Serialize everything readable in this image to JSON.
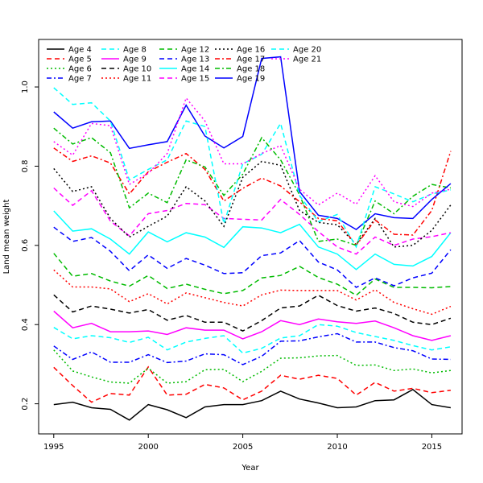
{
  "chart_data": {
    "type": "line",
    "xlabel": "Year",
    "ylabel": "Land mean weight",
    "xlim": [
      1994.2,
      2016.6
    ],
    "ylim": [
      0.124,
      1.12
    ],
    "xticks": [
      1995,
      2000,
      2005,
      2010,
      2015
    ],
    "yticks": [
      0.2,
      0.4,
      0.6,
      0.8,
      1.0
    ],
    "ytick_labels": [
      "0.2",
      "0.4",
      "0.6",
      "0.8",
      "1.0"
    ],
    "grid": false,
    "legend_location": "top-left",
    "x": [
      1995,
      1996,
      1997,
      1998,
      1999,
      2000,
      2001,
      2002,
      2003,
      2004,
      2005,
      2006,
      2007,
      2008,
      2009,
      2010,
      2011,
      2012,
      2013,
      2014,
      2015,
      2016
    ],
    "series": [
      {
        "name": "Age 4",
        "color": "#000000",
        "dash": "solid",
        "values": [
          0.198,
          0.204,
          0.19,
          0.186,
          0.159,
          0.198,
          0.185,
          0.165,
          0.192,
          0.198,
          0.198,
          0.208,
          0.232,
          0.212,
          0.202,
          0.19,
          0.192,
          0.208,
          0.21,
          0.236,
          0.198,
          0.19
        ]
      },
      {
        "name": "Age 5",
        "color": "#ff0000",
        "dash": "dashed",
        "values": [
          0.292,
          0.246,
          0.204,
          0.226,
          0.222,
          0.293,
          0.222,
          0.224,
          0.249,
          0.24,
          0.21,
          0.232,
          0.272,
          0.262,
          0.272,
          0.264,
          0.222,
          0.254,
          0.232,
          0.239,
          0.228,
          0.234
        ]
      },
      {
        "name": "Age 6",
        "color": "#00bb00",
        "dash": "dotted",
        "values": [
          0.336,
          0.283,
          0.268,
          0.255,
          0.252,
          0.29,
          0.252,
          0.256,
          0.286,
          0.287,
          0.256,
          0.282,
          0.315,
          0.316,
          0.321,
          0.322,
          0.297,
          0.298,
          0.284,
          0.288,
          0.278,
          0.284
        ]
      },
      {
        "name": "Age 7",
        "color": "#0000ff",
        "dash": "dashdot",
        "values": [
          0.346,
          0.312,
          0.331,
          0.305,
          0.305,
          0.324,
          0.304,
          0.308,
          0.326,
          0.324,
          0.299,
          0.32,
          0.358,
          0.359,
          0.369,
          0.377,
          0.356,
          0.356,
          0.342,
          0.334,
          0.313,
          0.312
        ]
      },
      {
        "name": "Age 8",
        "color": "#00ffff",
        "dash": "dashed",
        "values": [
          0.393,
          0.364,
          0.372,
          0.367,
          0.355,
          0.368,
          0.336,
          0.356,
          0.365,
          0.372,
          0.328,
          0.34,
          0.366,
          0.372,
          0.4,
          0.396,
          0.38,
          0.37,
          0.36,
          0.347,
          0.336,
          0.344
        ]
      },
      {
        "name": "Age 9",
        "color": "#ff00ff",
        "dash": "solid",
        "values": [
          0.434,
          0.392,
          0.403,
          0.382,
          0.382,
          0.384,
          0.375,
          0.392,
          0.386,
          0.386,
          0.364,
          0.382,
          0.41,
          0.4,
          0.414,
          0.407,
          0.403,
          0.409,
          0.392,
          0.372,
          0.36,
          0.372
        ]
      },
      {
        "name": "Age 10",
        "color": "#000000",
        "dash": "dashed",
        "values": [
          0.475,
          0.432,
          0.447,
          0.439,
          0.429,
          0.438,
          0.411,
          0.423,
          0.406,
          0.406,
          0.384,
          0.41,
          0.442,
          0.447,
          0.474,
          0.448,
          0.434,
          0.442,
          0.428,
          0.406,
          0.4,
          0.416
        ]
      },
      {
        "name": "Age 11",
        "color": "#ff0000",
        "dash": "dotted",
        "values": [
          0.538,
          0.495,
          0.495,
          0.49,
          0.458,
          0.478,
          0.452,
          0.48,
          0.468,
          0.456,
          0.447,
          0.475,
          0.487,
          0.486,
          0.486,
          0.486,
          0.462,
          0.488,
          0.456,
          0.44,
          0.426,
          0.446
        ]
      },
      {
        "name": "Age 12",
        "color": "#00bb00",
        "dash": "dashed",
        "values": [
          0.58,
          0.522,
          0.529,
          0.51,
          0.497,
          0.524,
          0.491,
          0.502,
          0.489,
          0.478,
          0.486,
          0.518,
          0.524,
          0.547,
          0.519,
          0.502,
          0.474,
          0.515,
          0.494,
          0.494,
          0.493,
          0.496
        ]
      },
      {
        "name": "Age 13",
        "color": "#0000ff",
        "dash": "dashed",
        "values": [
          0.646,
          0.61,
          0.62,
          0.585,
          0.536,
          0.576,
          0.542,
          0.567,
          0.55,
          0.529,
          0.531,
          0.574,
          0.581,
          0.612,
          0.558,
          0.538,
          0.494,
          0.518,
          0.498,
          0.518,
          0.53,
          0.589
        ]
      },
      {
        "name": "Age 14",
        "color": "#00ffff",
        "dash": "solid",
        "values": [
          0.687,
          0.636,
          0.642,
          0.616,
          0.578,
          0.634,
          0.609,
          0.632,
          0.621,
          0.595,
          0.647,
          0.644,
          0.632,
          0.653,
          0.596,
          0.578,
          0.539,
          0.578,
          0.552,
          0.548,
          0.572,
          0.632
        ]
      },
      {
        "name": "Age 15",
        "color": "#ff00ff",
        "dash": "dashed",
        "values": [
          0.745,
          0.701,
          0.738,
          0.661,
          0.624,
          0.68,
          0.688,
          0.706,
          0.703,
          0.668,
          0.666,
          0.664,
          0.716,
          0.678,
          0.635,
          0.596,
          0.578,
          0.621,
          0.6,
          0.616,
          0.622,
          0.632
        ]
      },
      {
        "name": "Age 16",
        "color": "#000000",
        "dash": "dotted",
        "values": [
          0.794,
          0.736,
          0.748,
          0.668,
          0.621,
          0.648,
          0.674,
          0.748,
          0.712,
          0.648,
          0.772,
          0.812,
          0.802,
          0.688,
          0.658,
          0.652,
          0.602,
          0.668,
          0.596,
          0.6,
          0.638,
          0.702
        ]
      },
      {
        "name": "Age 17",
        "color": "#ff0000",
        "dash": "dashdot",
        "values": [
          0.846,
          0.812,
          0.826,
          0.808,
          0.73,
          0.786,
          0.81,
          0.832,
          0.792,
          0.712,
          0.744,
          0.77,
          0.75,
          0.71,
          0.668,
          0.662,
          0.6,
          0.664,
          0.628,
          0.626,
          0.688,
          0.838
        ]
      },
      {
        "name": "Age 18",
        "color": "#00bb00",
        "dash": "dashdot",
        "values": [
          0.896,
          0.856,
          0.872,
          0.834,
          0.695,
          0.732,
          0.708,
          0.816,
          0.798,
          0.726,
          0.78,
          0.872,
          0.816,
          0.728,
          0.61,
          0.616,
          0.6,
          0.712,
          0.68,
          0.724,
          0.754,
          0.745
        ]
      },
      {
        "name": "Age 19",
        "color": "#0000ff",
        "dash": "solid",
        "values": [
          0.937,
          0.896,
          0.912,
          0.914,
          0.845,
          0.854,
          0.862,
          0.954,
          0.876,
          0.846,
          0.875,
          1.072,
          1.076,
          0.736,
          0.676,
          0.668,
          0.64,
          0.68,
          0.67,
          0.668,
          0.716,
          0.756
        ]
      },
      {
        "name": "Age 20",
        "color": "#00ffff",
        "dash": "dashed",
        "values": [
          0.998,
          0.956,
          0.96,
          0.914,
          0.765,
          0.792,
          0.816,
          0.914,
          0.9,
          0.655,
          0.806,
          0.83,
          0.908,
          0.726,
          0.66,
          0.678,
          0.596,
          0.748,
          0.73,
          0.71,
          0.73,
          0.74
        ]
      },
      {
        "name": "Age 21",
        "color": "#ff00ff",
        "dash": "dotted",
        "values": [
          0.862,
          0.828,
          0.908,
          0.902,
          0.754,
          0.782,
          0.832,
          0.972,
          0.914,
          0.806,
          0.806,
          0.832,
          0.852,
          0.742,
          0.702,
          0.732,
          0.704,
          0.776,
          0.71,
          0.698,
          0.732,
          0.742
        ]
      }
    ]
  }
}
